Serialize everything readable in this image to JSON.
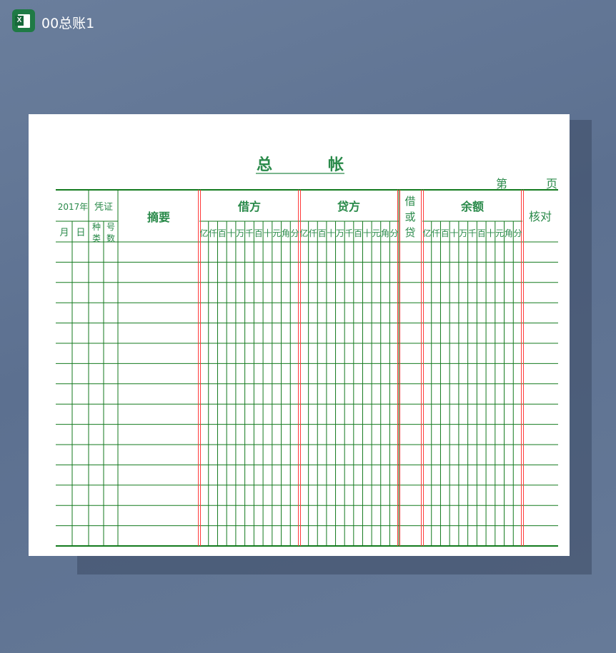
{
  "window": {
    "title": "00总账1",
    "icon": "excel-icon"
  },
  "ledger": {
    "title_left": "总",
    "title_right": "帐",
    "page_prefix": "第",
    "page_suffix": "页",
    "year": "2017年",
    "voucher": "凭证",
    "summary": "摘要",
    "debit": "借方",
    "credit": "贷方",
    "dc_indicator": [
      "借",
      "或",
      "贷"
    ],
    "balance": "余额",
    "check": "核对",
    "month": "月",
    "day": "日",
    "voucher_type": [
      "种",
      "类"
    ],
    "voucher_no": [
      "号",
      "数"
    ],
    "digit_units": [
      "亿",
      "仟",
      "百",
      "十",
      "万",
      "千",
      "百",
      "十",
      "元",
      "角",
      "分"
    ],
    "colors": {
      "line": "#137a1e",
      "separator": "#ff3b3b",
      "text": "#2a8a4a"
    }
  }
}
